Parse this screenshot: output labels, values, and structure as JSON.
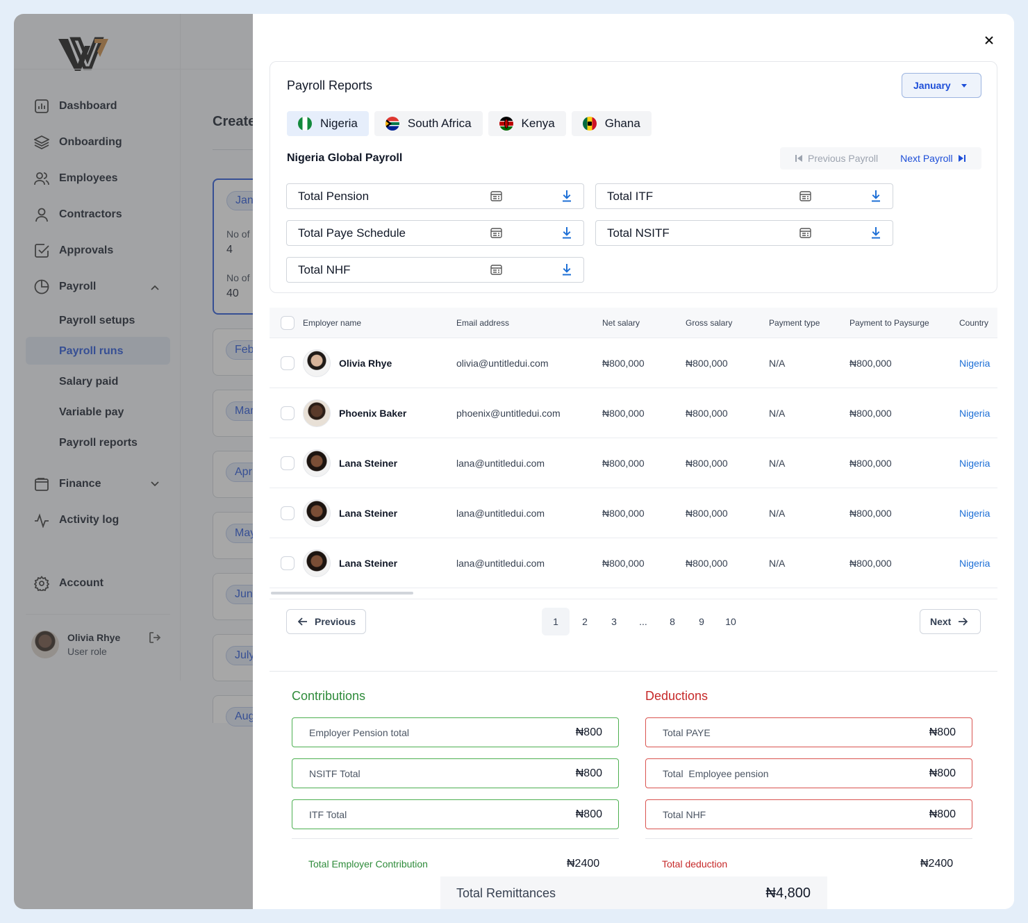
{
  "sidebar": {
    "items": [
      {
        "label": "Dashboard",
        "icon": "bar-chart-icon"
      },
      {
        "label": "Onboarding",
        "icon": "layers-icon"
      },
      {
        "label": "Employees",
        "icon": "users-icon"
      },
      {
        "label": "Contractors",
        "icon": "user-icon"
      },
      {
        "label": "Approvals",
        "icon": "check-square-icon"
      },
      {
        "label": "Payroll",
        "icon": "pie-chart-icon"
      },
      {
        "label": "Finance",
        "icon": "wallet-icon"
      },
      {
        "label": "Activity log",
        "icon": "activity-icon"
      },
      {
        "label": "Account",
        "icon": "gear-icon"
      }
    ],
    "payroll_sub": [
      "Payroll setups",
      "Payroll runs",
      "Salary paid",
      "Variable pay",
      "Payroll reports"
    ],
    "active_sub": "Payroll runs",
    "user": {
      "name": "Olivia Rhye",
      "role": "User role"
    }
  },
  "background": {
    "title": "Create",
    "stats": [
      {
        "label": "No of",
        "value": "4"
      },
      {
        "label": "No of",
        "value": "40"
      }
    ],
    "month_chips": [
      "Jan",
      "Feb",
      "Mar",
      "Apr",
      "May",
      "Jun",
      "July",
      "Aug"
    ]
  },
  "panel": {
    "title": "Payroll Reports",
    "month": "January",
    "tabs": [
      "Nigeria",
      "South Africa",
      "Kenya",
      "Ghana"
    ],
    "active_tab": "Nigeria",
    "subtitle": "Nigeria Global Payroll",
    "prev_payroll": "Previous Payroll",
    "next_payroll": "Next Payroll",
    "reports": [
      "Total Pension",
      "Total ITF",
      "Total Paye Schedule",
      "Total NSITF",
      "Total NHF"
    ]
  },
  "table": {
    "columns": [
      "Employer name",
      "Email address",
      "Net salary",
      "Gross salary",
      "Payment type",
      "Payment to Paysurge",
      "Country"
    ],
    "rows": [
      {
        "name": "Olivia Rhye",
        "email": "olivia@untitledui.com",
        "net": "₦800,000",
        "gross": "₦800,000",
        "type": "N/A",
        "paysurge": "₦800,000",
        "country": "Nigeria"
      },
      {
        "name": "Phoenix Baker",
        "email": "phoenix@untitledui.com",
        "net": "₦800,000",
        "gross": "₦800,000",
        "type": "N/A",
        "paysurge": "₦800,000",
        "country": "Nigeria"
      },
      {
        "name": "Lana Steiner",
        "email": "lana@untitledui.com",
        "net": "₦800,000",
        "gross": "₦800,000",
        "type": "N/A",
        "paysurge": "₦800,000",
        "country": "Nigeria"
      },
      {
        "name": "Lana Steiner",
        "email": "lana@untitledui.com",
        "net": "₦800,000",
        "gross": "₦800,000",
        "type": "N/A",
        "paysurge": "₦800,000",
        "country": "Nigeria"
      },
      {
        "name": "Lana Steiner",
        "email": "lana@untitledui.com",
        "net": "₦800,000",
        "gross": "₦800,000",
        "type": "N/A",
        "paysurge": "₦800,000",
        "country": "Nigeria"
      }
    ]
  },
  "pagination": {
    "previous": "Previous",
    "next": "Next",
    "pages": [
      "1",
      "2",
      "3",
      "...",
      "8",
      "9",
      "10"
    ],
    "current": "1"
  },
  "contributions": {
    "title": "Contributions",
    "items": [
      {
        "label": "Employer Pension total",
        "amount": "₦800"
      },
      {
        "label": "NSITF Total",
        "amount": "₦800"
      },
      {
        "label": "ITF Total",
        "amount": "₦800"
      }
    ],
    "total_label": "Total Employer Contribution",
    "total": "₦2400"
  },
  "deductions": {
    "title": "Deductions",
    "items": [
      {
        "label": "Total PAYE",
        "amount": "₦800"
      },
      {
        "label": "Total  Employee pension",
        "amount": "₦800"
      },
      {
        "label": "Total NHF",
        "amount": "₦800"
      }
    ],
    "total_label": "Total deduction",
    "total": "₦2400"
  },
  "remittance": {
    "label": "Total Remittances",
    "amount": "₦4,800"
  },
  "colors": {
    "primary": "#1d4ed8",
    "green": "#2e8b3a",
    "red": "#c62828",
    "overlay": "#808080"
  }
}
